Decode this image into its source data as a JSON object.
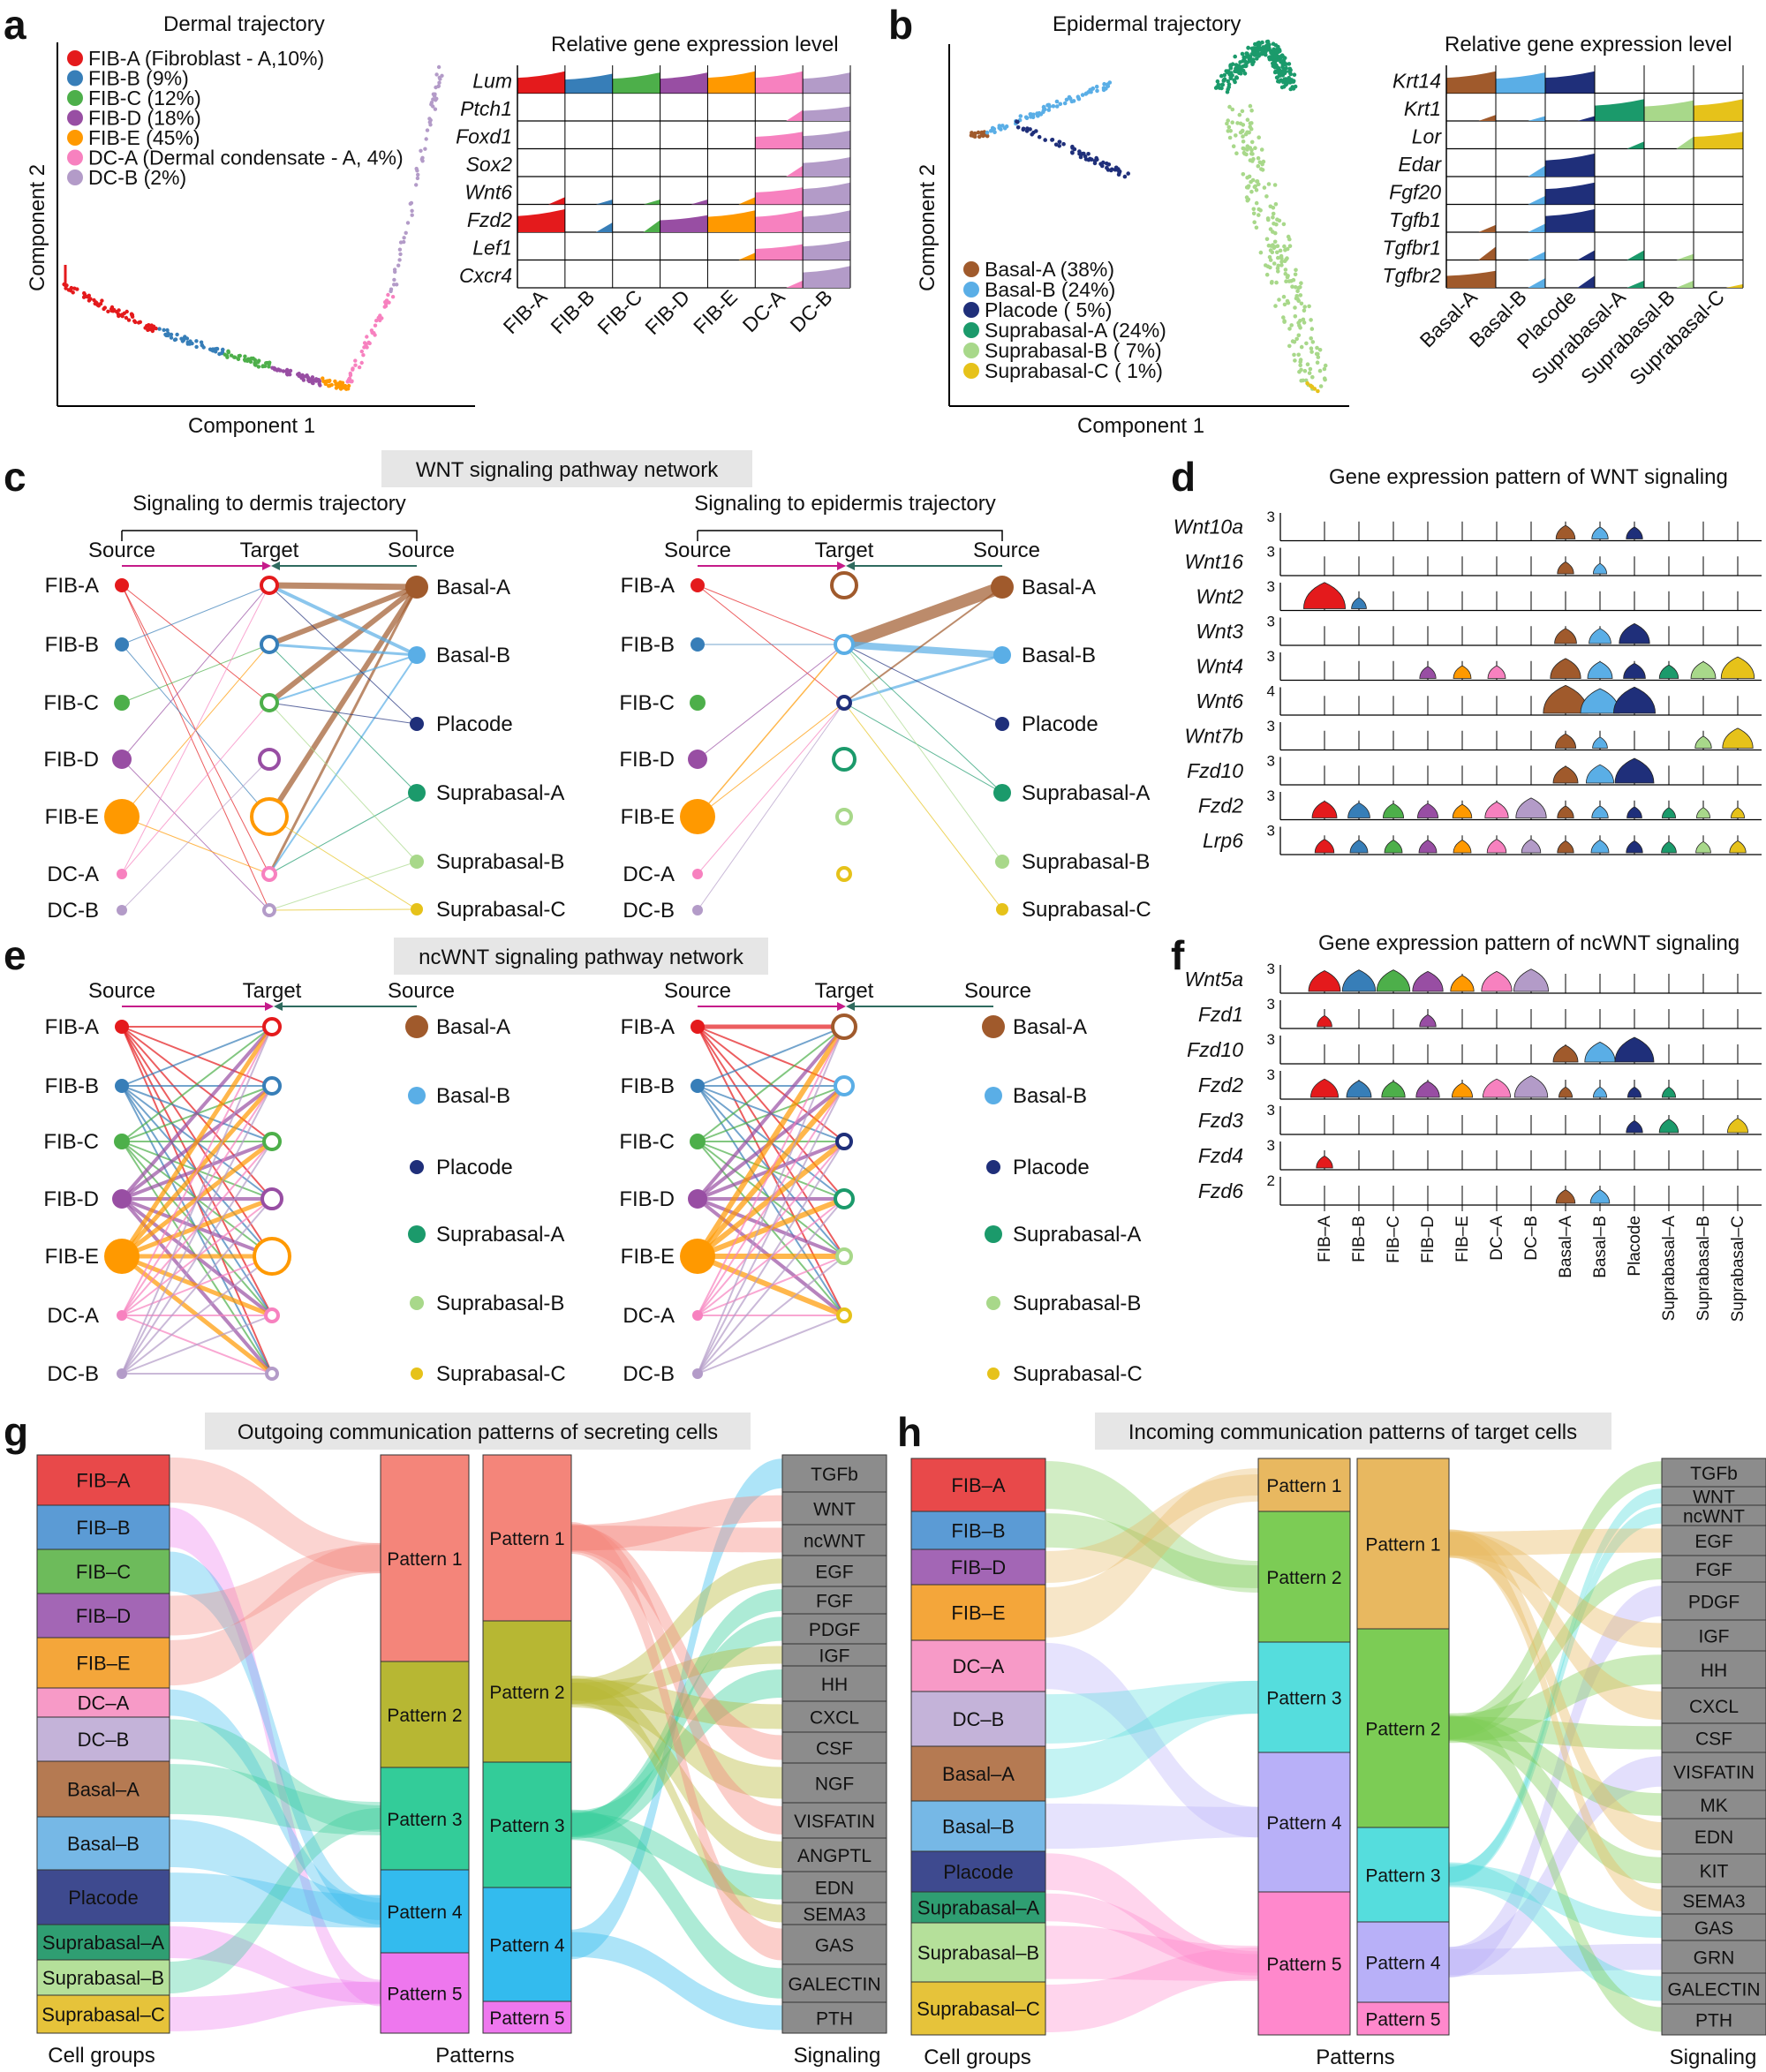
{
  "panels": {
    "a": {
      "letter": "a",
      "title": "Dermal trajectory",
      "xlabel": "Component 1",
      "ylabel": "Component 2",
      "legend": [
        "FIB-A (Fibroblast - A,10%)",
        "FIB-B (9%)",
        "FIB-C (12%)",
        "FIB-D (18%)",
        "FIB-E (45%)",
        "DC-A (Dermal condensate - A, 4%)",
        "DC-B (2%)"
      ],
      "expr_title": "Relative gene expression level",
      "genes": [
        "Lum",
        "Ptch1",
        "Foxd1",
        "Sox2",
        "Wnt6",
        "Fzd2",
        "Lef1",
        "Cxcr4"
      ],
      "cells": [
        "FIB-A",
        "FIB-B",
        "FIB-C",
        "FIB-D",
        "FIB-E",
        "DC-A",
        "DC-B"
      ]
    },
    "b": {
      "letter": "b",
      "title": "Epidermal trajectory",
      "xlabel": "Component 1",
      "ylabel": "Component 2",
      "legend": [
        "Basal-A (38%)",
        "Basal-B (24%)",
        "Placode ( 5%)",
        "Suprabasal-A (24%)",
        "Suprabasal-B ( 7%)",
        "Suprabasal-C ( 1%)"
      ],
      "expr_title": "Relative gene expression level",
      "genes": [
        "Krt14",
        "Krt1",
        "Lor",
        "Edar",
        "Fgf20",
        "Tgfb1",
        "Tgfbr1",
        "Tgfbr2"
      ],
      "cells": [
        "Basal-A",
        "Basal-B",
        "Placode",
        "Suprabasal-A",
        "Suprabasal-B",
        "Suprabasal-C"
      ]
    },
    "c": {
      "letter": "c",
      "title": "WNT signaling pathway network",
      "left_title": "Signaling to dermis trajectory",
      "right_title": "Signaling to epidermis trajectory",
      "source_label": "Source",
      "target_label": "Target"
    },
    "d": {
      "letter": "d",
      "title": "Gene expression pattern of WNT signaling",
      "genes": [
        "Wnt10a",
        "Wnt16",
        "Wnt2",
        "Wnt3",
        "Wnt4",
        "Wnt6",
        "Wnt7b",
        "Fzd10",
        "Fzd2",
        "Lrp6"
      ],
      "ymax": [
        "3",
        "3",
        "3",
        "3",
        "3",
        "4",
        "3",
        "3",
        "3",
        "3"
      ]
    },
    "e": {
      "letter": "e",
      "title": "ncWNT signaling pathway network",
      "source_label": "Source",
      "target_label": "Target"
    },
    "f": {
      "letter": "f",
      "title": "Gene expression pattern of ncWNT signaling",
      "genes": [
        "Wnt5a",
        "Fzd1",
        "Fzd10",
        "Fzd2",
        "Fzd3",
        "Fzd4",
        "Fzd6"
      ],
      "ymax": [
        "3",
        "3",
        "3",
        "3",
        "3",
        "3",
        "2"
      ],
      "cells": [
        "FIB–A",
        "FIB–B",
        "FIB–C",
        "FIB–D",
        "FIB–E",
        "DC–A",
        "DC–B",
        "Basal–A",
        "Basal–B",
        "Placode",
        "Suprabasal–A",
        "Suprabasal–B",
        "Suprabasal–C"
      ]
    },
    "g": {
      "letter": "g",
      "title": "Outgoing communication patterns of secreting cells",
      "groups": [
        "FIB–A",
        "FIB–B",
        "FIB–C",
        "FIB–D",
        "FIB–E",
        "DC–A",
        "DC–B",
        "Basal–A",
        "Basal–B",
        "Placode",
        "Suprabasal–A",
        "Suprabasal–B",
        "Suprabasal–C"
      ],
      "patterns": [
        "Pattern 1",
        "Pattern 2",
        "Pattern 3",
        "Pattern 4",
        "Pattern 5"
      ],
      "signals": [
        "TGFb",
        "WNT",
        "ncWNT",
        "EGF",
        "FGF",
        "PDGF",
        "IGF",
        "HH",
        "CXCL",
        "CSF",
        "NGF",
        "VISFATIN",
        "ANGPTL",
        "EDN",
        "SEMA3",
        "GAS",
        "GALECTIN",
        "PTH"
      ],
      "footer": [
        "Cell groups",
        "Patterns",
        "Signaling"
      ]
    },
    "h": {
      "letter": "h",
      "title": "Incoming communication patterns of target cells",
      "groups": [
        "FIB–A",
        "FIB–B",
        "FIB–D",
        "FIB–E",
        "DC–A",
        "DC–B",
        "Basal–A",
        "Basal–B",
        "Placode",
        "Suprabasal–A",
        "Suprabasal–B",
        "Suprabasal–C"
      ],
      "patterns": [
        "Pattern 1",
        "Pattern 2",
        "Pattern 3",
        "Pattern 4",
        "Pattern 5"
      ],
      "signals": [
        "TGFb",
        "WNT",
        "ncWNT",
        "EGF",
        "FGF",
        "PDGF",
        "IGF",
        "HH",
        "CXCL",
        "CSF",
        "VISFATIN",
        "MK",
        "EDN",
        "KIT",
        "SEMA3",
        "GAS",
        "GRN",
        "GALECTIN",
        "PTH"
      ],
      "footer": [
        "Cell groups",
        "Patterns",
        "Signaling"
      ]
    }
  },
  "network_labels": {
    "dermis": [
      "FIB-A",
      "FIB-B",
      "FIB-C",
      "FIB-D",
      "FIB-E",
      "DC-A",
      "DC-B"
    ],
    "epidermis": [
      "Basal-A",
      "Basal-B",
      "Placode",
      "Suprabasal-A",
      "Suprabasal-B",
      "Suprabasal-C"
    ]
  },
  "colors": {
    "FIB-A": "#e41a1c",
    "FIB-B": "#377eb8",
    "FIB-C": "#4daf4a",
    "FIB-D": "#984ea3",
    "FIB-E": "#ff9900",
    "DC-A": "#f781bf",
    "DC-B": "#b39bc8",
    "Basal-A": "#a05a2c",
    "Basal-B": "#5aaee6",
    "Placode": "#1f2f7a",
    "Suprabasal-A": "#1b9a6b",
    "Suprabasal-B": "#a8d88a",
    "Suprabasal-C": "#e6c21a",
    "source_accent": "#c51b8a",
    "target_accent": "#2f6b5f",
    "pattern1": "#f4857a",
    "pattern2": "#b7b733",
    "pattern3": "#33cc99",
    "pattern4": "#33bbee",
    "pattern5": "#ee77ee",
    "h_pattern1": "#e8b860",
    "h_pattern2": "#7ccc55",
    "h_pattern3": "#55dddd",
    "h_pattern4": "#b8b0f8",
    "h_pattern5": "#ff88cc",
    "signal_gray": "#8c8c8c"
  }
}
